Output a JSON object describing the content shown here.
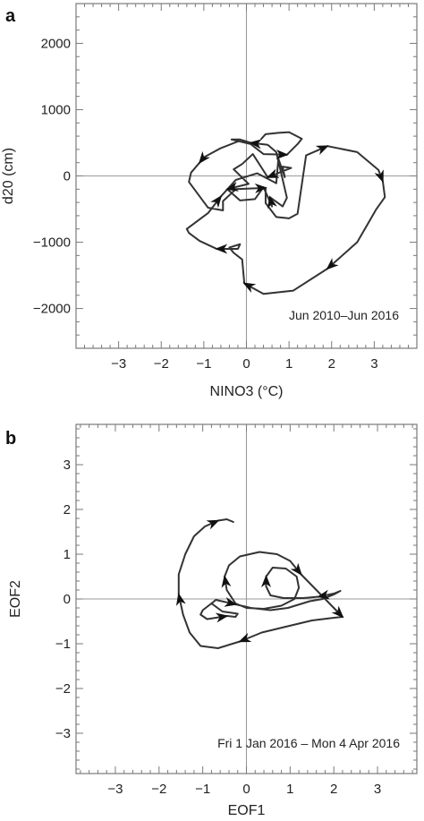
{
  "chart_data": [
    {
      "type": "line",
      "panel_label": "a",
      "xlabel": "NINO3 (°C)",
      "ylabel": "d20 (cm)",
      "xlim": [
        -4,
        4
      ],
      "ylim": [
        -2600,
        2600
      ],
      "xticks": [
        -3,
        -2,
        -1,
        0,
        1,
        2,
        3
      ],
      "xtick_labels": [
        "−3",
        "−2",
        "−1",
        "0",
        "1",
        "2",
        "3"
      ],
      "yticks": [
        -2000,
        -1000,
        0,
        1000,
        2000
      ],
      "ytick_labels": [
        "−2000",
        "−1000",
        "0",
        "1000",
        "2000"
      ],
      "annotation": "Jun 2010–Jun 2016",
      "line_color": "#333333",
      "series": [
        {
          "x": [
            -0.2,
            -0.6,
            -1.0,
            -1.1,
            -1.3,
            -1.35,
            -0.9,
            -0.55,
            -0.55,
            -0.25,
            0.45,
            0.45,
            0.7,
            1.0,
            1.2,
            1.4,
            1.9,
            2.6,
            3.1,
            3.2,
            3.25,
            3.05,
            2.6,
            1.9,
            1.1,
            0.4,
            -0.05,
            -0.1,
            -0.3,
            -0.4,
            -0.15,
            -0.2,
            -0.7,
            -1.1,
            -1.35,
            -1.4,
            -0.9,
            -0.6,
            -0.25,
            0.25,
            0.7,
            0.75,
            0.9,
            0.85,
            1.05,
            0.5,
            0.15,
            -0.1,
            -0.3,
            0.05,
            -0.45,
            -0.15,
            0.2,
            0.4,
            0.6,
            0.55,
            0.85,
            0.95,
            0.7,
            0.5,
            0.1,
            -0.15,
            -0.35,
            0.1,
            0.4,
            0.95,
            1.2,
            1.3,
            1.0,
            0.75,
            0.45,
            0.35
          ],
          "y": [
            520,
            420,
            280,
            200,
            50,
            -90,
            -480,
            -520,
            -380,
            -200,
            -180,
            -410,
            -620,
            -640,
            -570,
            310,
            450,
            360,
            90,
            -80,
            -320,
            -500,
            -1000,
            -1400,
            -1730,
            -1780,
            -1620,
            -1260,
            -1160,
            -1080,
            -1030,
            -1100,
            -1100,
            -980,
            -860,
            -800,
            -560,
            -310,
            -60,
            40,
            -110,
            260,
            -20,
            140,
            120,
            -20,
            330,
            180,
            100,
            -120,
            -200,
            -370,
            -350,
            -170,
            -460,
            -320,
            -460,
            -330,
            360,
            470,
            500,
            550,
            550,
            480,
            330,
            320,
            480,
            560,
            660,
            650,
            630,
            560
          ],
          "arrows_at": [
            3,
            10,
            16,
            19,
            23,
            26,
            32,
            37,
            45,
            50,
            55,
            60,
            65
          ]
        }
      ]
    },
    {
      "type": "line",
      "panel_label": "b",
      "xlabel": "EOF1",
      "ylabel": "EOF2",
      "xlim": [
        -3.9,
        3.9
      ],
      "ylim": [
        -3.9,
        3.9
      ],
      "xticks": [
        -3,
        -2,
        -1,
        0,
        1,
        2,
        3
      ],
      "xtick_labels": [
        "−3",
        "−2",
        "−1",
        "0",
        "1",
        "2",
        "3"
      ],
      "yticks": [
        -3,
        -2,
        -1,
        0,
        1,
        2,
        3
      ],
      "ytick_labels": [
        "−3",
        "−2",
        "−1",
        "0",
        "1",
        "2",
        "3"
      ],
      "annotation": "Fri 1 Jan 2016 – Mon 4 Apr 2016",
      "line_color": "#333333",
      "series": [
        {
          "x": [
            -0.8,
            -1.0,
            -1.05,
            -0.9,
            -0.7,
            -0.45,
            -0.25,
            -0.2,
            -0.55,
            -0.8,
            -0.7,
            -0.25,
            0.1,
            0.55,
            0.95,
            1.45,
            1.75,
            2.0,
            2.15,
            2.0,
            1.65,
            1.3,
            0.85,
            0.55,
            0.45,
            0.45,
            0.6,
            0.9,
            1.15,
            1.2,
            1.1,
            0.8,
            0.4,
            0.0,
            -0.25,
            -0.45,
            -0.5,
            -0.4,
            -0.15,
            0.3,
            0.7,
            1.0,
            1.25,
            1.6,
            1.9,
            2.1,
            2.2,
            2.0,
            1.5,
            0.9,
            0.35,
            -0.15,
            -0.65,
            -1.05,
            -1.3,
            -1.45,
            -1.55,
            -1.55,
            -1.4,
            -1.2,
            -0.95,
            -0.65,
            -0.45,
            -0.3
          ],
          "y": [
            -0.1,
            -0.25,
            -0.35,
            -0.45,
            -0.42,
            -0.38,
            -0.4,
            -0.33,
            -0.28,
            -0.1,
            -0.02,
            -0.12,
            -0.2,
            -0.25,
            -0.2,
            -0.05,
            0.0,
            0.1,
            0.18,
            0.12,
            0.05,
            0.02,
            0.02,
            0.08,
            0.28,
            0.5,
            0.7,
            0.68,
            0.5,
            0.25,
            0.0,
            -0.15,
            -0.22,
            -0.2,
            -0.1,
            0.2,
            0.5,
            0.75,
            0.95,
            1.05,
            1.0,
            0.85,
            0.55,
            0.2,
            -0.1,
            -0.3,
            -0.4,
            -0.42,
            -0.48,
            -0.62,
            -0.75,
            -0.95,
            -1.1,
            -1.05,
            -0.75,
            -0.35,
            0.1,
            0.55,
            1.0,
            1.4,
            1.62,
            1.75,
            1.78,
            1.72
          ],
          "arrows_at": [
            5,
            11,
            20,
            25,
            36,
            42,
            46,
            51,
            56,
            61
          ]
        }
      ]
    }
  ],
  "colors": {
    "axis": "#7a7a7a",
    "zero_lines": "#9a9a9a",
    "line": "#333333"
  }
}
